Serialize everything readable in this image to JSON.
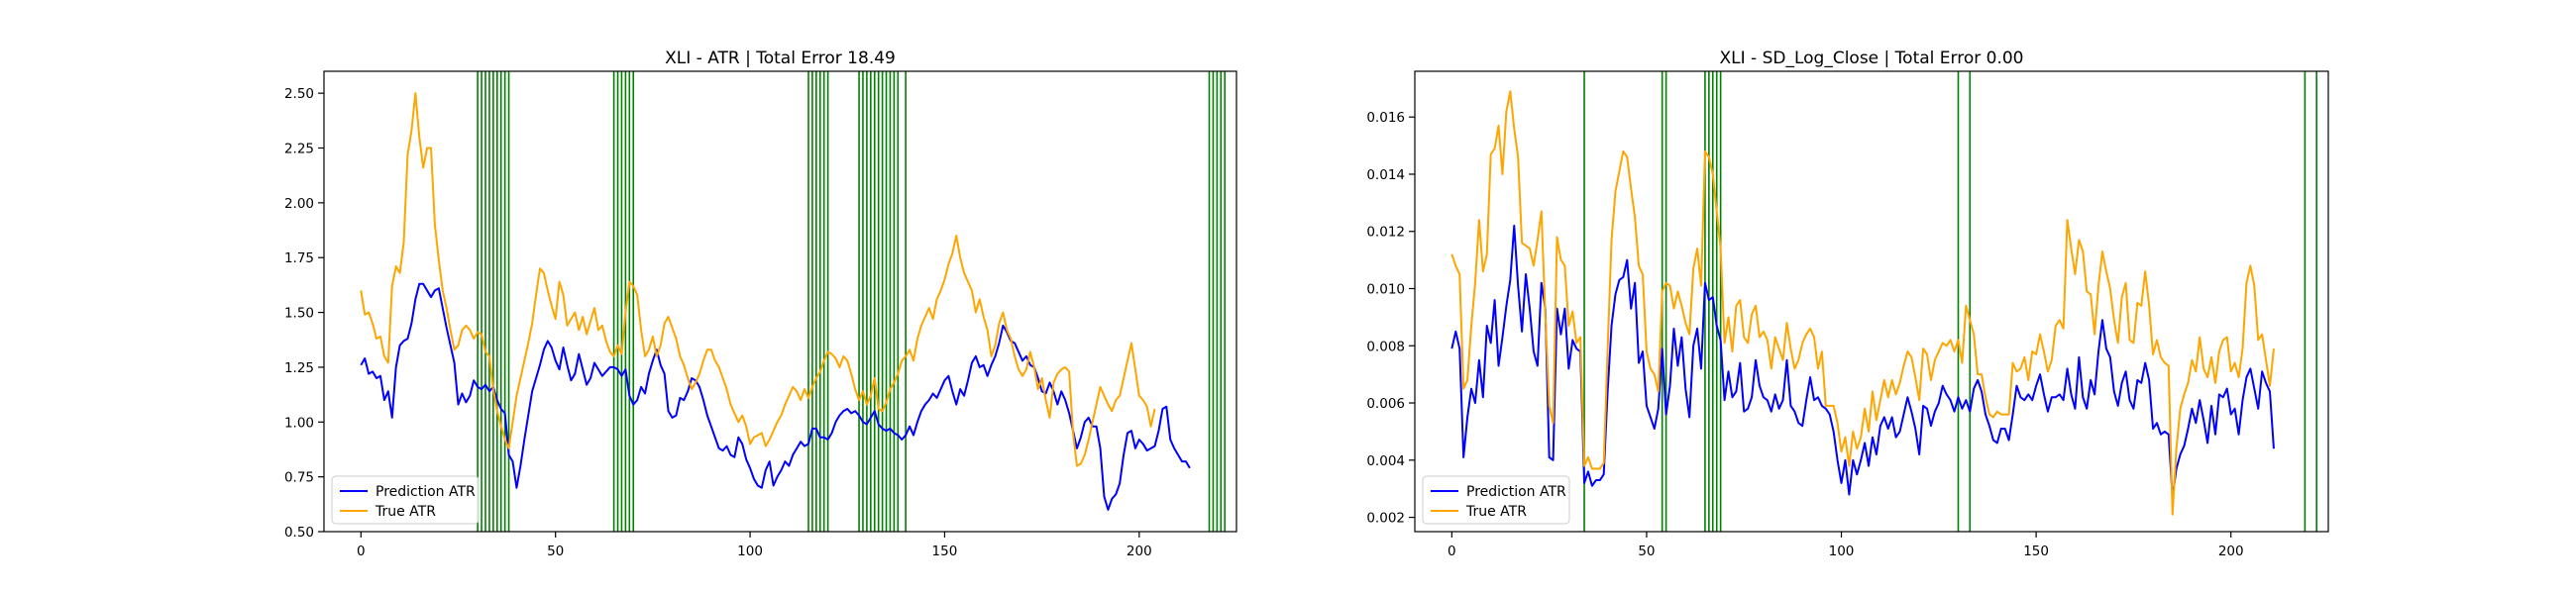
{
  "colors": {
    "prediction": "#0000ff",
    "true": "#ffa500",
    "vline": "#008000",
    "axis": "#000000"
  },
  "chart_data": [
    {
      "type": "line",
      "title": "XLI - ATR | Total Error 18.49",
      "xlim": [
        -9.5,
        225
      ],
      "ylim": [
        0.5,
        2.6
      ],
      "xticks": [
        0,
        50,
        100,
        150,
        200
      ],
      "yticks": [
        0.5,
        0.75,
        1.0,
        1.25,
        1.5,
        1.75,
        2.0,
        2.25,
        2.5
      ],
      "ytick_labels": [
        "0.50",
        "0.75",
        "1.00",
        "1.25",
        "1.50",
        "1.75",
        "2.00",
        "2.25",
        "2.50"
      ],
      "legend": {
        "position": "lower-left",
        "entries": [
          "Prediction ATR",
          "True ATR"
        ]
      },
      "grid": false,
      "vlines": [
        30,
        31,
        32,
        33,
        34,
        35,
        36,
        37,
        38,
        65,
        66,
        67,
        68,
        69,
        70,
        115,
        116,
        117,
        118,
        119,
        120,
        128,
        129,
        130,
        131,
        132,
        133,
        134,
        135,
        136,
        137,
        138,
        140,
        218,
        219,
        220,
        221,
        222
      ],
      "series": [
        {
          "name": "Prediction ATR",
          "color_key": "prediction",
          "values": [
            1.26,
            1.29,
            1.22,
            1.23,
            1.2,
            1.21,
            1.1,
            1.14,
            1.02,
            1.25,
            1.35,
            1.37,
            1.38,
            1.45,
            1.56,
            1.63,
            1.63,
            1.6,
            1.57,
            1.6,
            1.61,
            1.52,
            1.43,
            1.35,
            1.27,
            1.08,
            1.13,
            1.09,
            1.12,
            1.19,
            1.16,
            1.15,
            1.17,
            1.14,
            1.16,
            1.1,
            1.06,
            1.04,
            0.85,
            0.82,
            0.7,
            0.8,
            0.92,
            1.03,
            1.14,
            1.2,
            1.26,
            1.33,
            1.37,
            1.34,
            1.28,
            1.24,
            1.34,
            1.26,
            1.19,
            1.22,
            1.31,
            1.24,
            1.17,
            1.2,
            1.27,
            1.24,
            1.21,
            1.23,
            1.25,
            1.25,
            1.24,
            1.21,
            1.24,
            1.12,
            1.08,
            1.1,
            1.16,
            1.13,
            1.22,
            1.28,
            1.33,
            1.26,
            1.22,
            1.05,
            1.02,
            1.03,
            1.11,
            1.1,
            1.14,
            1.2,
            1.19,
            1.16,
            1.1,
            1.03,
            0.98,
            0.93,
            0.88,
            0.87,
            0.89,
            0.85,
            0.84,
            0.93,
            0.9,
            0.83,
            0.79,
            0.74,
            0.71,
            0.7,
            0.78,
            0.82,
            0.71,
            0.75,
            0.78,
            0.82,
            0.8,
            0.85,
            0.88,
            0.91,
            0.89,
            0.9,
            0.97,
            0.97,
            0.93,
            0.93,
            0.92,
            0.95,
            1.0,
            1.03,
            1.05,
            1.06,
            1.04,
            1.05,
            1.03,
            1.0,
            0.99,
            1.02,
            1.05,
            0.99,
            0.97,
            0.96,
            0.97,
            0.95,
            0.94,
            0.92,
            0.94,
            0.98,
            0.94,
            1.0,
            1.05,
            1.08,
            1.1,
            1.13,
            1.11,
            1.15,
            1.19,
            1.21,
            1.14,
            1.08,
            1.15,
            1.12,
            1.19,
            1.27,
            1.3,
            1.25,
            1.26,
            1.21,
            1.26,
            1.3,
            1.36,
            1.44,
            1.41,
            1.37,
            1.36,
            1.32,
            1.28,
            1.3,
            1.26,
            1.25,
            1.2,
            1.14,
            1.13,
            1.18,
            1.14,
            1.08,
            1.14,
            1.1,
            1.04,
            0.96,
            0.88,
            0.93,
            1.0,
            1.02,
            0.98,
            0.98,
            0.88,
            0.66,
            0.6,
            0.65,
            0.67,
            0.72,
            0.85,
            0.95,
            0.96,
            0.88,
            0.92,
            0.9,
            0.87,
            0.88,
            0.89,
            0.96,
            1.06,
            1.07,
            0.92,
            0.88,
            0.85,
            0.82,
            0.82,
            0.79
          ]
        },
        {
          "name": "True ATR",
          "color_key": "true",
          "values": [
            1.6,
            1.49,
            1.5,
            1.45,
            1.38,
            1.39,
            1.3,
            1.27,
            1.62,
            1.71,
            1.68,
            1.82,
            2.22,
            2.33,
            2.5,
            2.3,
            2.16,
            2.25,
            2.25,
            1.9,
            1.74,
            1.6,
            1.52,
            1.42,
            1.33,
            1.35,
            1.42,
            1.44,
            1.42,
            1.38,
            1.41,
            1.4,
            1.32,
            1.3,
            1.15,
            1.05,
            0.98,
            0.92,
            0.88,
            1.0,
            1.12,
            1.2,
            1.28,
            1.36,
            1.45,
            1.58,
            1.7,
            1.68,
            1.6,
            1.53,
            1.47,
            1.64,
            1.58,
            1.44,
            1.47,
            1.5,
            1.42,
            1.48,
            1.4,
            1.46,
            1.52,
            1.42,
            1.44,
            1.37,
            1.32,
            1.3,
            1.35,
            1.31,
            1.5,
            1.64,
            1.62,
            1.58,
            1.42,
            1.3,
            1.33,
            1.39,
            1.3,
            1.35,
            1.45,
            1.48,
            1.43,
            1.38,
            1.3,
            1.26,
            1.2,
            1.15,
            1.18,
            1.22,
            1.28,
            1.33,
            1.33,
            1.28,
            1.25,
            1.2,
            1.15,
            1.08,
            1.04,
            1.0,
            1.03,
            0.98,
            0.9,
            0.93,
            0.94,
            0.95,
            0.89,
            0.92,
            0.96,
            1.0,
            1.03,
            1.08,
            1.12,
            1.16,
            1.14,
            1.1,
            1.15,
            1.11,
            1.16,
            1.2,
            1.23,
            1.28,
            1.32,
            1.31,
            1.29,
            1.25,
            1.3,
            1.28,
            1.22,
            1.15,
            1.1,
            1.14,
            1.08,
            1.12,
            1.2,
            1.06,
            1.05,
            1.09,
            1.15,
            1.18,
            1.22,
            1.28,
            1.3,
            1.33,
            1.28,
            1.38,
            1.44,
            1.48,
            1.52,
            1.47,
            1.56,
            1.6,
            1.65,
            1.72,
            1.77,
            1.85,
            1.75,
            1.68,
            1.64,
            1.6,
            1.5,
            1.56,
            1.48,
            1.42,
            1.3,
            1.35,
            1.45,
            1.5,
            1.42,
            1.38,
            1.3,
            1.24,
            1.21,
            1.24,
            1.32,
            1.25,
            1.15,
            1.2,
            1.1,
            1.02,
            1.18,
            1.22,
            1.24,
            1.25,
            1.23,
            0.95,
            0.8,
            0.81,
            0.85,
            0.92,
            1.0,
            1.08,
            1.16,
            1.12,
            1.08,
            1.05,
            1.1,
            1.12,
            1.2,
            1.28,
            1.36,
            1.24,
            1.12,
            1.1,
            1.07,
            0.98,
            1.06
          ]
        }
      ]
    },
    {
      "type": "line",
      "title": "XLI - SD_Log_Close | Total Error 0.00",
      "xlim": [
        -9.5,
        225
      ],
      "ylim": [
        0.0015,
        0.0176
      ],
      "xticks": [
        0,
        50,
        100,
        150,
        200
      ],
      "yticks": [
        0.002,
        0.004,
        0.006,
        0.008,
        0.01,
        0.012,
        0.014,
        0.016
      ],
      "ytick_labels": [
        "0.002",
        "0.004",
        "0.006",
        "0.008",
        "0.010",
        "0.012",
        "0.014",
        "0.016"
      ],
      "legend": {
        "position": "lower-left",
        "entries": [
          "Prediction ATR",
          "True ATR"
        ]
      },
      "grid": false,
      "vlines": [
        34,
        54,
        55,
        65,
        66,
        67,
        68,
        69,
        130,
        133,
        219,
        222
      ],
      "series": [
        {
          "name": "Prediction ATR",
          "color_key": "prediction",
          "values": [
            0.0079,
            0.0085,
            0.0079,
            0.0041,
            0.0055,
            0.0065,
            0.006,
            0.0075,
            0.0062,
            0.0087,
            0.0081,
            0.0096,
            0.0073,
            0.0083,
            0.0094,
            0.0103,
            0.0122,
            0.0101,
            0.0085,
            0.0105,
            0.0093,
            0.0078,
            0.0073,
            0.0102,
            0.0093,
            0.0041,
            0.004,
            0.0093,
            0.0084,
            0.0093,
            0.0072,
            0.0082,
            0.0079,
            0.0078,
            0.0032,
            0.0036,
            0.0031,
            0.0033,
            0.0033,
            0.0035,
            0.0064,
            0.0087,
            0.0098,
            0.0103,
            0.0104,
            0.011,
            0.0093,
            0.0102,
            0.0074,
            0.0078,
            0.0059,
            0.0055,
            0.0051,
            0.0058,
            0.0079,
            0.0056,
            0.0066,
            0.0086,
            0.0073,
            0.0083,
            0.0065,
            0.0055,
            0.008,
            0.0086,
            0.0072,
            0.0102,
            0.0096,
            0.0097,
            0.0087,
            0.0082,
            0.0061,
            0.0071,
            0.0062,
            0.0064,
            0.0074,
            0.0057,
            0.0058,
            0.0062,
            0.0075,
            0.0066,
            0.0062,
            0.0061,
            0.0057,
            0.0063,
            0.0058,
            0.0061,
            0.0075,
            0.0059,
            0.0057,
            0.0053,
            0.0052,
            0.0061,
            0.0069,
            0.0061,
            0.0062,
            0.0059,
            0.0058,
            0.0056,
            0.005,
            0.004,
            0.0032,
            0.004,
            0.0028,
            0.004,
            0.0035,
            0.004,
            0.0046,
            0.0038,
            0.0048,
            0.0042,
            0.0052,
            0.0055,
            0.0051,
            0.0055,
            0.0048,
            0.005,
            0.0056,
            0.0062,
            0.0057,
            0.0051,
            0.0042,
            0.0059,
            0.0058,
            0.0052,
            0.0057,
            0.006,
            0.0066,
            0.0063,
            0.0061,
            0.0057,
            0.0062,
            0.0058,
            0.0061,
            0.0057,
            0.0065,
            0.0068,
            0.0064,
            0.0056,
            0.0052,
            0.0047,
            0.0046,
            0.0051,
            0.0051,
            0.0047,
            0.0056,
            0.0066,
            0.0062,
            0.0061,
            0.0063,
            0.0061,
            0.0066,
            0.007,
            0.0063,
            0.0057,
            0.0062,
            0.0062,
            0.0063,
            0.0061,
            0.0072,
            0.0063,
            0.0058,
            0.0076,
            0.0062,
            0.0058,
            0.0068,
            0.0063,
            0.0078,
            0.0089,
            0.0079,
            0.0076,
            0.0064,
            0.0059,
            0.0067,
            0.0071,
            0.0061,
            0.0058,
            0.0068,
            0.0067,
            0.0074,
            0.0068,
            0.0051,
            0.0053,
            0.0049,
            0.005,
            0.0049,
            0.0027,
            0.0037,
            0.0042,
            0.0045,
            0.0051,
            0.0058,
            0.0053,
            0.0061,
            0.0054,
            0.0046,
            0.0059,
            0.0049,
            0.0063,
            0.0062,
            0.0065,
            0.0056,
            0.0058,
            0.0049,
            0.0061,
            0.0069,
            0.0072,
            0.0065,
            0.0058,
            0.0071,
            0.0067,
            0.0064,
            0.0044
          ]
        },
        {
          "name": "True ATR",
          "color_key": "true",
          "values": [
            0.0112,
            0.0108,
            0.0105,
            0.0065,
            0.0068,
            0.0087,
            0.0102,
            0.0124,
            0.0106,
            0.0112,
            0.0147,
            0.0149,
            0.0157,
            0.014,
            0.0162,
            0.0169,
            0.0156,
            0.0146,
            0.0116,
            0.0115,
            0.0114,
            0.0108,
            0.0117,
            0.0127,
            0.0091,
            0.0059,
            0.0053,
            0.0118,
            0.011,
            0.0108,
            0.0087,
            0.0092,
            0.0081,
            0.0083,
            0.0038,
            0.0041,
            0.0037,
            0.0037,
            0.0037,
            0.0039,
            0.0079,
            0.0117,
            0.0134,
            0.0141,
            0.0148,
            0.0146,
            0.0135,
            0.0125,
            0.0108,
            0.0105,
            0.0078,
            0.0072,
            0.007,
            0.0064,
            0.0099,
            0.0102,
            0.0101,
            0.0093,
            0.0099,
            0.0094,
            0.0088,
            0.0084,
            0.0107,
            0.0114,
            0.0101,
            0.0148,
            0.0146,
            0.014,
            0.0127,
            0.0114,
            0.0081,
            0.009,
            0.0078,
            0.0094,
            0.0096,
            0.0083,
            0.0081,
            0.0091,
            0.0094,
            0.0083,
            0.0085,
            0.0082,
            0.0072,
            0.0083,
            0.0079,
            0.0075,
            0.0088,
            0.0079,
            0.0072,
            0.0075,
            0.0081,
            0.0084,
            0.0086,
            0.0083,
            0.0072,
            0.0078,
            0.0059,
            0.0059,
            0.0059,
            0.0053,
            0.0043,
            0.0048,
            0.0038,
            0.005,
            0.0044,
            0.0048,
            0.0058,
            0.005,
            0.0064,
            0.0054,
            0.0061,
            0.0068,
            0.0062,
            0.0068,
            0.0063,
            0.0067,
            0.0073,
            0.0078,
            0.0076,
            0.0069,
            0.0061,
            0.0079,
            0.0077,
            0.0068,
            0.0075,
            0.0078,
            0.0081,
            0.008,
            0.0082,
            0.0078,
            0.0082,
            0.0074,
            0.0094,
            0.0089,
            0.0084,
            0.007,
            0.007,
            0.0062,
            0.0056,
            0.0055,
            0.0057,
            0.0056,
            0.0056,
            0.0056,
            0.0074,
            0.0071,
            0.0072,
            0.0076,
            0.0068,
            0.0078,
            0.0077,
            0.0084,
            0.0078,
            0.0071,
            0.0075,
            0.0087,
            0.0089,
            0.0086,
            0.0124,
            0.0114,
            0.0105,
            0.0117,
            0.0113,
            0.0099,
            0.0098,
            0.0084,
            0.0101,
            0.0113,
            0.0106,
            0.01,
            0.0089,
            0.0081,
            0.0097,
            0.0102,
            0.0082,
            0.0081,
            0.0095,
            0.0094,
            0.0106,
            0.0094,
            0.0077,
            0.0082,
            0.0076,
            0.0074,
            0.0073,
            0.0021,
            0.0044,
            0.0058,
            0.0063,
            0.0067,
            0.0075,
            0.0071,
            0.0083,
            0.0072,
            0.0069,
            0.0076,
            0.0067,
            0.0078,
            0.0082,
            0.0083,
            0.0071,
            0.0074,
            0.0069,
            0.0079,
            0.0102,
            0.0108,
            0.0101,
            0.0082,
            0.0084,
            0.0075,
            0.0066,
            0.0079
          ]
        }
      ]
    }
  ]
}
